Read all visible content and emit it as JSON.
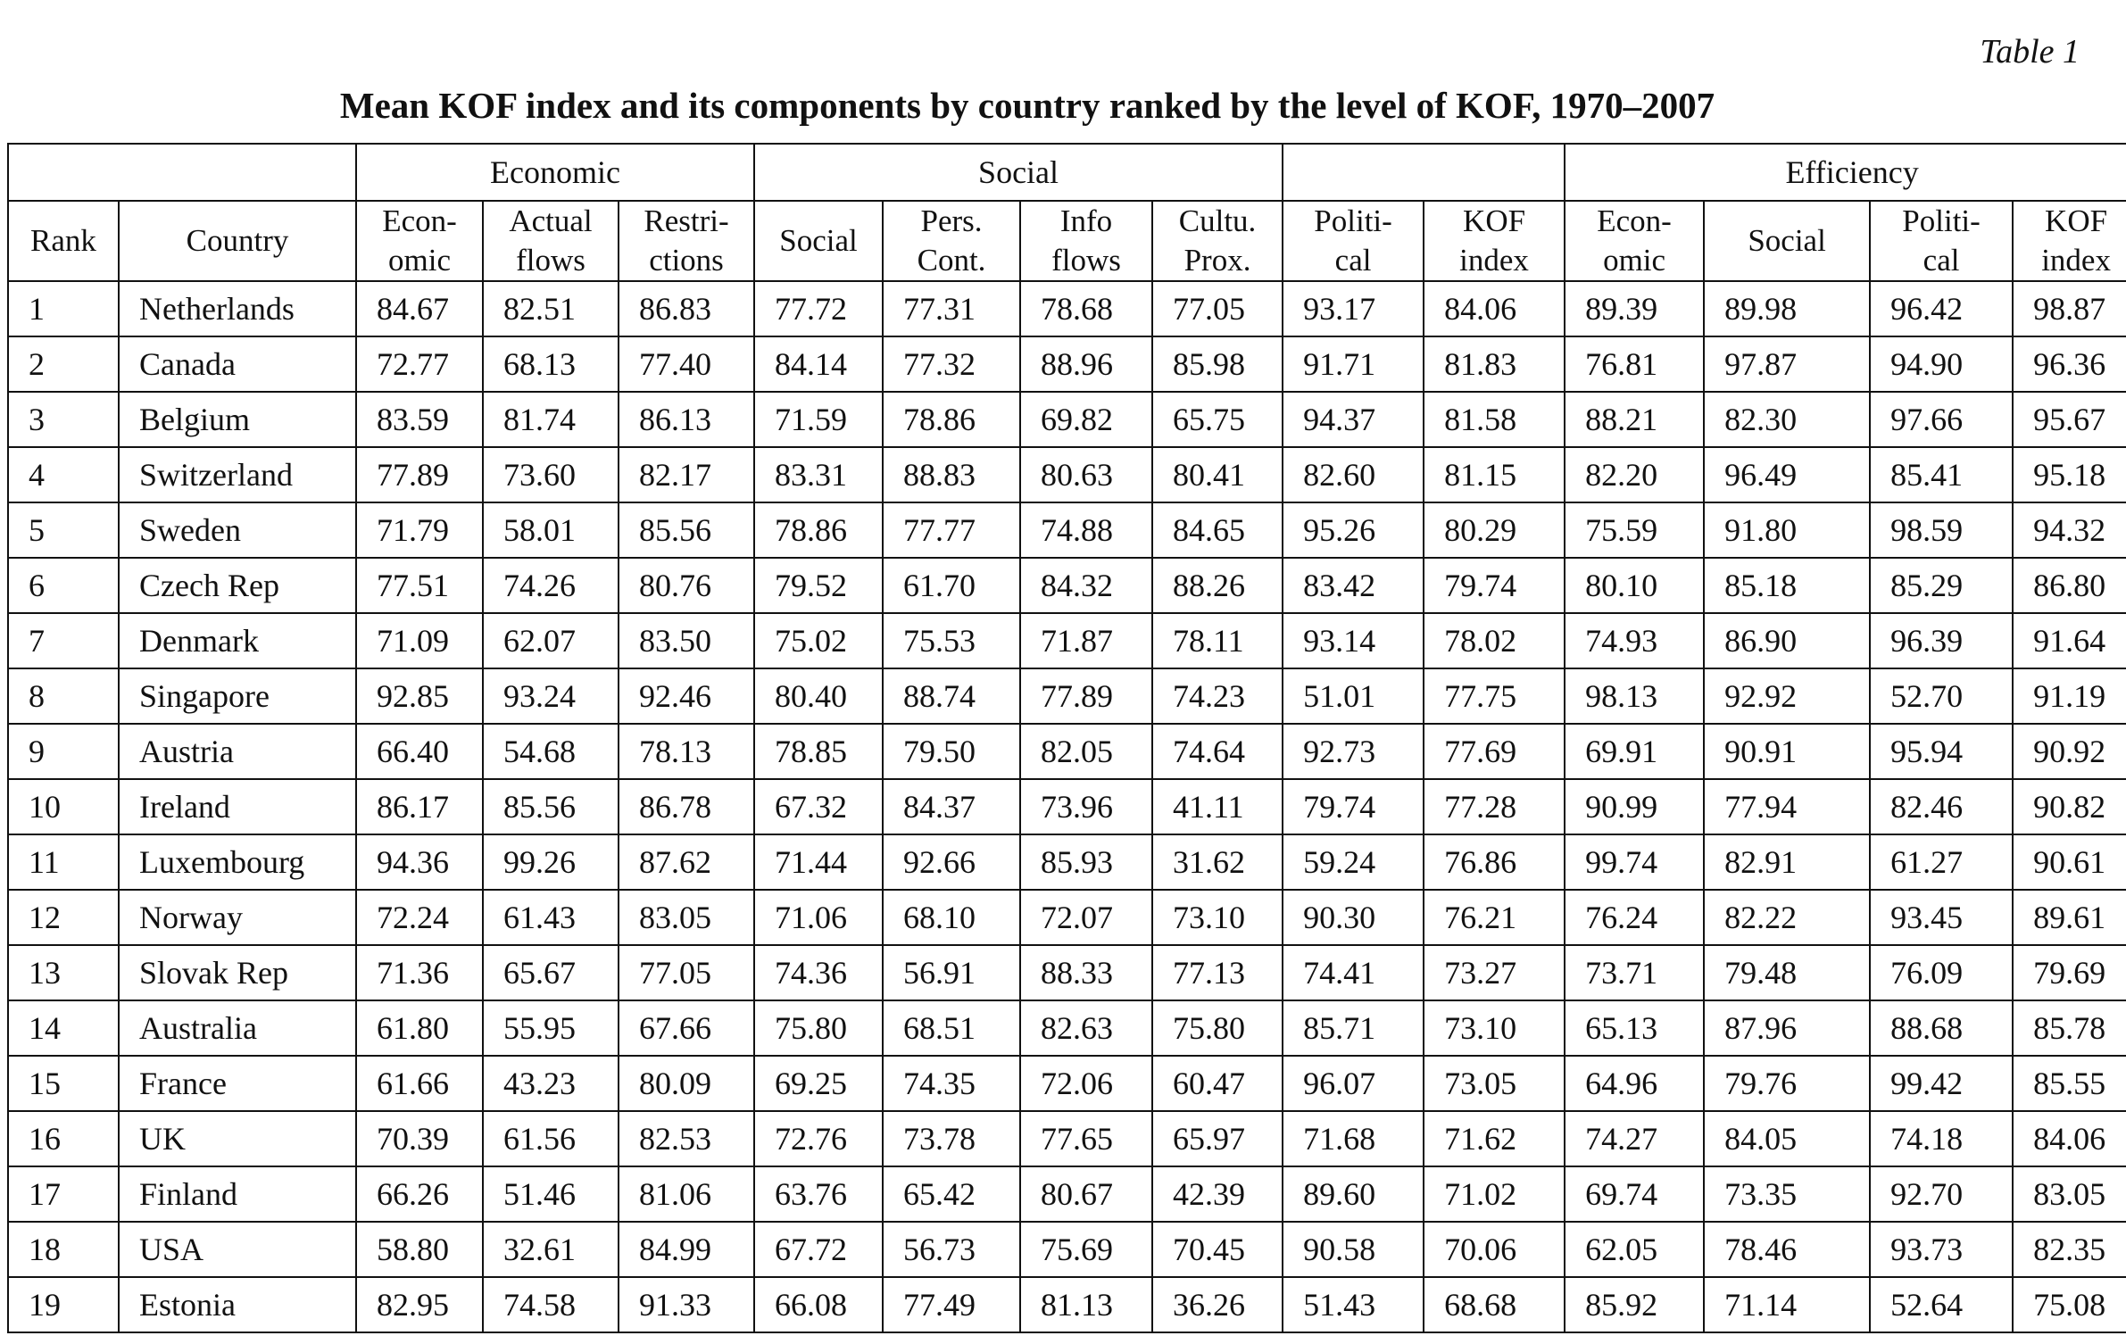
{
  "table_label": "Table 1",
  "title": "Mean KOF index and its components by country ranked by the level of KOF, 1970–2007",
  "group_headers": {
    "economic": "Economic",
    "social": "Social",
    "efficiency": "Efficiency"
  },
  "columns": [
    {
      "l1": "Rank",
      "l2": ""
    },
    {
      "l1": "Country",
      "l2": ""
    },
    {
      "l1": "Econ-",
      "l2": "omic"
    },
    {
      "l1": "Actual",
      "l2": "flows"
    },
    {
      "l1": "Restri-",
      "l2": "ctions"
    },
    {
      "l1": "Social",
      "l2": ""
    },
    {
      "l1": "Pers.",
      "l2": "Cont."
    },
    {
      "l1": "Info",
      "l2": "flows"
    },
    {
      "l1": "Cultu.",
      "l2": "Prox."
    },
    {
      "l1": "Politi-",
      "l2": "cal"
    },
    {
      "l1": "KOF",
      "l2": "index"
    },
    {
      "l1": "Econ-",
      "l2": "omic"
    },
    {
      "l1": "Social",
      "l2": ""
    },
    {
      "l1": "Politi-",
      "l2": "cal"
    },
    {
      "l1": "KOF",
      "l2": "index"
    }
  ],
  "rows": [
    [
      "1",
      "Netherlands",
      "84.67",
      "82.51",
      "86.83",
      "77.72",
      "77.31",
      "78.68",
      "77.05",
      "93.17",
      "84.06",
      "89.39",
      "89.98",
      "96.42",
      "98.87"
    ],
    [
      "2",
      "Canada",
      "72.77",
      "68.13",
      "77.40",
      "84.14",
      "77.32",
      "88.96",
      "85.98",
      "91.71",
      "81.83",
      "76.81",
      "97.87",
      "94.90",
      "96.36"
    ],
    [
      "3",
      "Belgium",
      "83.59",
      "81.74",
      "86.13",
      "71.59",
      "78.86",
      "69.82",
      "65.75",
      "94.37",
      "81.58",
      "88.21",
      "82.30",
      "97.66",
      "95.67"
    ],
    [
      "4",
      "Switzerland",
      "77.89",
      "73.60",
      "82.17",
      "83.31",
      "88.83",
      "80.63",
      "80.41",
      "82.60",
      "81.15",
      "82.20",
      "96.49",
      "85.41",
      "95.18"
    ],
    [
      "5",
      "Sweden",
      "71.79",
      "58.01",
      "85.56",
      "78.86",
      "77.77",
      "74.88",
      "84.65",
      "95.26",
      "80.29",
      "75.59",
      "91.80",
      "98.59",
      "94.32"
    ],
    [
      "6",
      "Czech Rep",
      "77.51",
      "74.26",
      "80.76",
      "79.52",
      "61.70",
      "84.32",
      "88.26",
      "83.42",
      "79.74",
      "80.10",
      "85.18",
      "85.29",
      "86.80"
    ],
    [
      "7",
      "Denmark",
      "71.09",
      "62.07",
      "83.50",
      "75.02",
      "75.53",
      "71.87",
      "78.11",
      "93.14",
      "78.02",
      "74.93",
      "86.90",
      "96.39",
      "91.64"
    ],
    [
      "8",
      "Singapore",
      "92.85",
      "93.24",
      "92.46",
      "80.40",
      "88.74",
      "77.89",
      "74.23",
      "51.01",
      "77.75",
      "98.13",
      "92.92",
      "52.70",
      "91.19"
    ],
    [
      "9",
      "Austria",
      "66.40",
      "54.68",
      "78.13",
      "78.85",
      "79.50",
      "82.05",
      "74.64",
      "92.73",
      "77.69",
      "69.91",
      "90.91",
      "95.94",
      "90.92"
    ],
    [
      "10",
      "Ireland",
      "86.17",
      "85.56",
      "86.78",
      "67.32",
      "84.37",
      "73.96",
      "41.11",
      "79.74",
      "77.28",
      "90.99",
      "77.94",
      "82.46",
      "90.82"
    ],
    [
      "11",
      "Luxembourg",
      "94.36",
      "99.26",
      "87.62",
      "71.44",
      "92.66",
      "85.93",
      "31.62",
      "59.24",
      "76.86",
      "99.74",
      "82.91",
      "61.27",
      "90.61"
    ],
    [
      "12",
      "Norway",
      "72.24",
      "61.43",
      "83.05",
      "71.06",
      "68.10",
      "72.07",
      "73.10",
      "90.30",
      "76.21",
      "76.24",
      "82.22",
      "93.45",
      "89.61"
    ],
    [
      "13",
      "Slovak Rep",
      "71.36",
      "65.67",
      "77.05",
      "74.36",
      "56.91",
      "88.33",
      "77.13",
      "74.41",
      "73.27",
      "73.71",
      "79.48",
      "76.09",
      "79.69"
    ],
    [
      "14",
      "Australia",
      "61.80",
      "55.95",
      "67.66",
      "75.80",
      "68.51",
      "82.63",
      "75.80",
      "85.71",
      "73.10",
      "65.13",
      "87.96",
      "88.68",
      "85.78"
    ],
    [
      "15",
      "France",
      "61.66",
      "43.23",
      "80.09",
      "69.25",
      "74.35",
      "72.06",
      "60.47",
      "96.07",
      "73.05",
      "64.96",
      "79.76",
      "99.42",
      "85.55"
    ],
    [
      "16",
      "UK",
      "70.39",
      "61.56",
      "82.53",
      "72.76",
      "73.78",
      "77.65",
      "65.97",
      "71.68",
      "71.62",
      "74.27",
      "84.05",
      "74.18",
      "84.06"
    ],
    [
      "17",
      "Finland",
      "66.26",
      "51.46",
      "81.06",
      "63.76",
      "65.42",
      "80.67",
      "42.39",
      "89.60",
      "71.02",
      "69.74",
      "73.35",
      "92.70",
      "83.05"
    ],
    [
      "18",
      "USA",
      "58.80",
      "32.61",
      "84.99",
      "67.72",
      "56.73",
      "75.69",
      "70.45",
      "90.58",
      "70.06",
      "62.05",
      "78.46",
      "93.73",
      "82.35"
    ],
    [
      "19",
      "Estonia",
      "82.95",
      "74.58",
      "91.33",
      "66.08",
      "77.49",
      "81.13",
      "36.26",
      "51.43",
      "68.68",
      "85.92",
      "71.14",
      "52.64",
      "75.08"
    ]
  ]
}
